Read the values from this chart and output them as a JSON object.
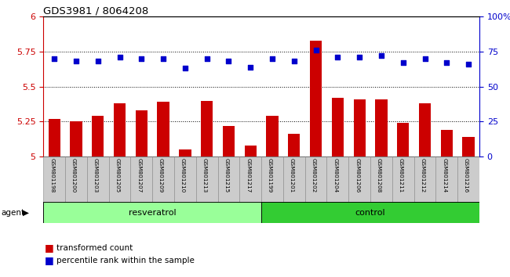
{
  "title": "GDS3981 / 8064208",
  "samples": [
    "GSM801198",
    "GSM801200",
    "GSM801203",
    "GSM801205",
    "GSM801207",
    "GSM801209",
    "GSM801210",
    "GSM801213",
    "GSM801215",
    "GSM801217",
    "GSM801199",
    "GSM801201",
    "GSM801202",
    "GSM801204",
    "GSM801206",
    "GSM801208",
    "GSM801211",
    "GSM801212",
    "GSM801214",
    "GSM801216"
  ],
  "transformed_count": [
    5.27,
    5.25,
    5.29,
    5.38,
    5.33,
    5.39,
    5.05,
    5.4,
    5.22,
    5.08,
    5.29,
    5.16,
    5.83,
    5.42,
    5.41,
    5.41,
    5.24,
    5.38,
    5.19,
    5.14
  ],
  "percentile_rank": [
    70,
    68,
    68,
    71,
    70,
    70,
    63,
    70,
    68,
    64,
    70,
    68,
    76,
    71,
    71,
    72,
    67,
    70,
    67,
    66
  ],
  "bar_color": "#cc0000",
  "dot_color": "#0000cc",
  "resveratrol_color": "#99ff99",
  "control_color": "#33cc33",
  "ylim_left": [
    5.0,
    6.0
  ],
  "ylim_right": [
    0,
    100
  ],
  "yticks_left": [
    5.0,
    5.25,
    5.5,
    5.75,
    6.0
  ],
  "yticks_right": [
    0,
    25,
    50,
    75,
    100
  ],
  "ytick_labels_left": [
    "5",
    "5.25",
    "5.5",
    "5.75",
    "6"
  ],
  "ytick_labels_right": [
    "0",
    "25",
    "50",
    "75",
    "100%"
  ],
  "bar_width": 0.55,
  "tick_label_color_left": "#cc0000",
  "tick_label_color_right": "#0000cc",
  "legend_bar_label": "transformed count",
  "legend_dot_label": "percentile rank within the sample",
  "agent_label": "agent"
}
